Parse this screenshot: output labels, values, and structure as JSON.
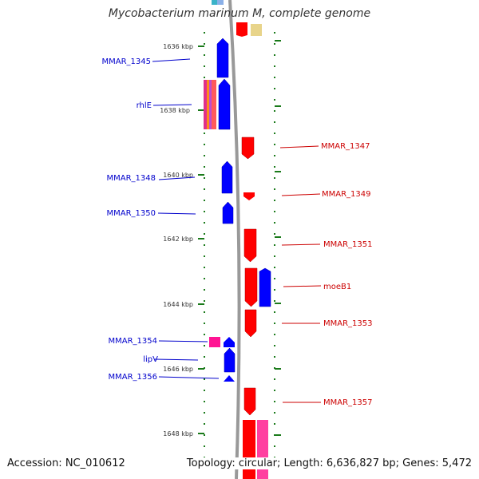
{
  "title": "Mycobacterium marinum M, complete genome",
  "footer": {
    "accession": "Accession: NC_010612",
    "topology": "Topology: circular; Length: 6,636,827 bp; Genes: 5,472"
  },
  "colors": {
    "forward_strand": "#0000ff",
    "reverse_strand": "#ff0000",
    "magenta_feature": "#ff1493",
    "multi_feature_bar": "#ff5a5a",
    "backbone": "#999999",
    "tick": "#1a7a1a",
    "label_left": "#0000cc",
    "label_right": "#cc0000"
  },
  "scale_labels": [
    "1636 kbp",
    "1638 kbp",
    "1640 kbp",
    "1642 kbp",
    "1644 kbp",
    "1646 kbp",
    "1648 kbp"
  ],
  "genes_left": [
    "MMAR_1345",
    "rhlE",
    "MMAR_1348",
    "MMAR_1350",
    "MMAR_1354",
    "lipV",
    "MMAR_1356"
  ],
  "genes_right": [
    "MMAR_1347",
    "MMAR_1349",
    "MMAR_1351",
    "moeB1",
    "MMAR_1353",
    "MMAR_1357"
  ]
}
